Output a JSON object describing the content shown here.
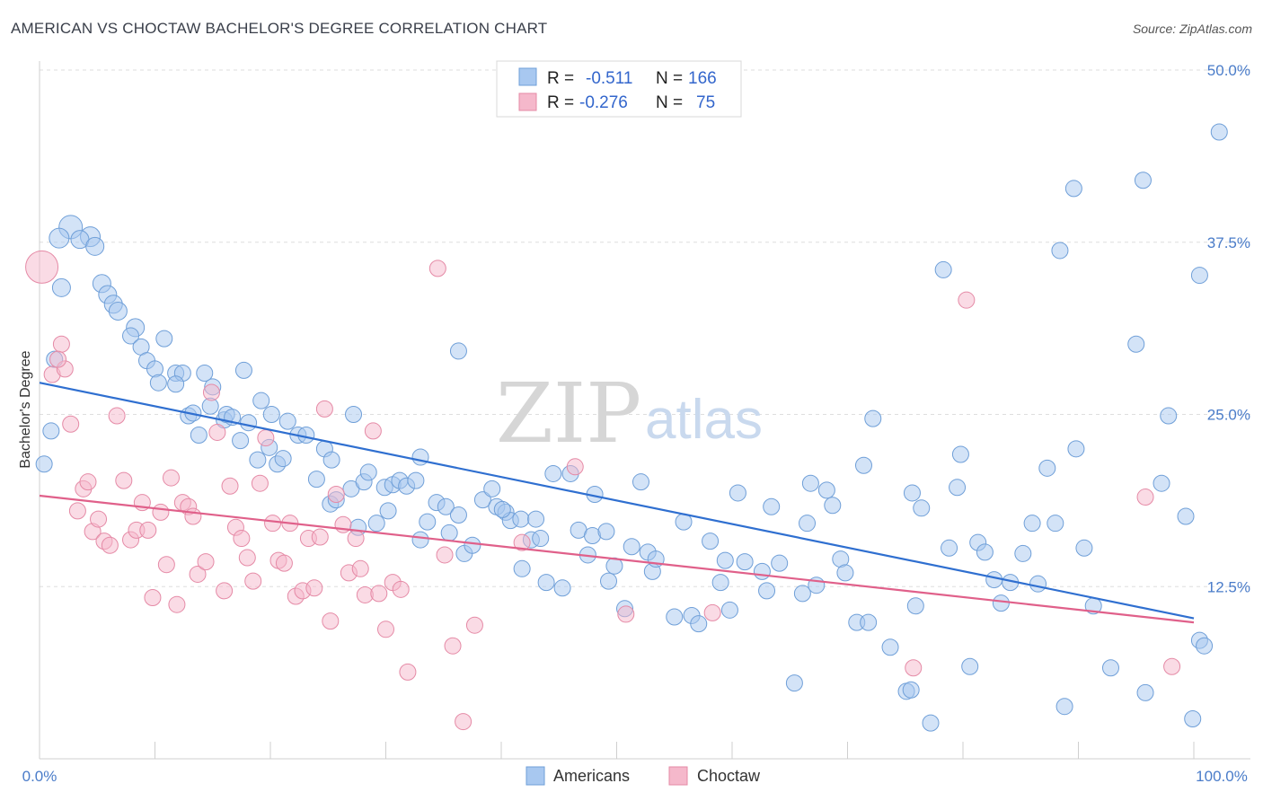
{
  "title": "AMERICAN VS CHOCTAW BACHELOR'S DEGREE CORRELATION CHART",
  "source": "Source: ZipAtlas.com",
  "watermark": {
    "zip": "ZIP",
    "atlas": "atlas"
  },
  "legend_top": [
    {
      "r_label": "R =",
      "r_value": "-0.511",
      "n_label": "N =",
      "n_value": "166",
      "color": "#a8c8f0",
      "stroke": "#6f9fd8"
    },
    {
      "r_label": "R =",
      "r_value": "-0.276",
      "n_label": "N =",
      "n_value": "75",
      "color": "#f5b8cb",
      "stroke": "#e58aa6"
    }
  ],
  "legend_bottom": [
    {
      "label": "Americans",
      "color": "#a8c8f0",
      "stroke": "#6f9fd8"
    },
    {
      "label": "Choctaw",
      "color": "#f5b8cb",
      "stroke": "#e58aa6"
    }
  ],
  "chart_data": {
    "type": "scatter",
    "title": "AMERICAN VS CHOCTAW BACHELOR'S DEGREE CORRELATION CHART",
    "xlabel": "",
    "ylabel": "Bachelor's Degree",
    "xlim": [
      0,
      100
    ],
    "ylim": [
      0,
      50
    ],
    "x_tick_labels": [
      "0.0%",
      "100.0%"
    ],
    "y_ticks": [
      12.5,
      25.0,
      37.5,
      50.0
    ],
    "y_tick_labels": [
      "12.5%",
      "25.0%",
      "37.5%",
      "50.0%"
    ],
    "grid": "horizontal dashed",
    "legend_position": "top-center",
    "series": [
      {
        "name": "Americans",
        "color": "#a8c8f0",
        "stroke": "#6f9fd8",
        "line_color": "#2f6fd0",
        "trend": {
          "x": [
            0,
            100
          ],
          "y": [
            27.3,
            10.2
          ]
        },
        "points": [
          [
            2.7,
            38.6,
            13
          ],
          [
            4.4,
            37.9,
            11
          ],
          [
            1.7,
            37.8,
            11
          ],
          [
            3.5,
            37.7,
            10
          ],
          [
            4.8,
            37.2,
            10
          ],
          [
            1.9,
            34.2,
            10
          ],
          [
            5.4,
            34.5,
            10
          ],
          [
            5.9,
            33.7,
            10
          ],
          [
            6.4,
            33.0,
            10
          ],
          [
            6.8,
            32.5,
            10
          ],
          [
            8.3,
            31.3,
            10
          ],
          [
            7.9,
            30.7,
            9
          ],
          [
            10.8,
            30.5,
            9
          ],
          [
            8.8,
            29.9,
            9
          ],
          [
            9.3,
            28.9,
            9
          ],
          [
            10.0,
            28.3,
            9
          ],
          [
            11.8,
            28.0,
            9
          ],
          [
            12.4,
            28.0,
            9
          ],
          [
            14.3,
            28.0,
            9
          ],
          [
            17.7,
            28.2,
            9
          ],
          [
            10.3,
            27.3,
            9
          ],
          [
            11.8,
            27.2,
            9
          ],
          [
            15.0,
            27.0,
            9
          ],
          [
            1.3,
            29.0,
            9
          ],
          [
            0.4,
            21.4,
            9
          ],
          [
            1.0,
            23.8,
            9
          ],
          [
            12.9,
            24.9,
            9
          ],
          [
            13.3,
            25.1,
            9
          ],
          [
            14.8,
            25.6,
            9
          ],
          [
            16.0,
            24.6,
            9
          ],
          [
            16.2,
            25.0,
            9
          ],
          [
            16.7,
            24.8,
            9
          ],
          [
            18.1,
            24.4,
            9
          ],
          [
            19.2,
            26.0,
            9
          ],
          [
            13.8,
            23.5,
            9
          ],
          [
            17.4,
            23.1,
            9
          ],
          [
            20.1,
            25.0,
            9
          ],
          [
            21.5,
            24.5,
            9
          ],
          [
            18.9,
            21.7,
            9
          ],
          [
            19.9,
            22.6,
            9
          ],
          [
            20.6,
            21.4,
            9
          ],
          [
            21.1,
            21.8,
            9
          ],
          [
            22.4,
            23.5,
            9
          ],
          [
            23.1,
            23.5,
            9
          ],
          [
            24.7,
            22.5,
            9
          ],
          [
            25.3,
            21.7,
            9
          ],
          [
            27.2,
            25.0,
            9
          ],
          [
            36.3,
            29.6,
            9
          ],
          [
            33.0,
            21.9,
            9
          ],
          [
            24.0,
            20.3,
            9
          ],
          [
            25.2,
            18.5,
            9
          ],
          [
            25.7,
            18.8,
            9
          ],
          [
            27.0,
            19.6,
            9
          ],
          [
            27.6,
            16.8,
            9
          ],
          [
            28.1,
            20.1,
            9
          ],
          [
            28.5,
            20.8,
            9
          ],
          [
            29.2,
            17.1,
            9
          ],
          [
            29.9,
            19.7,
            9
          ],
          [
            30.6,
            19.9,
            9
          ],
          [
            30.2,
            18.0,
            9
          ],
          [
            31.2,
            20.2,
            9
          ],
          [
            31.8,
            19.8,
            9
          ],
          [
            32.6,
            20.2,
            9
          ],
          [
            33.0,
            15.9,
            9
          ],
          [
            33.6,
            17.2,
            9
          ],
          [
            34.4,
            18.6,
            9
          ],
          [
            35.2,
            18.3,
            9
          ],
          [
            35.5,
            16.4,
            9
          ],
          [
            36.3,
            17.7,
            9
          ],
          [
            36.8,
            14.9,
            9
          ],
          [
            37.5,
            15.5,
            9
          ],
          [
            38.4,
            18.8,
            9
          ],
          [
            39.2,
            19.6,
            9
          ],
          [
            39.6,
            18.3,
            9
          ],
          [
            40.4,
            17.9,
            9
          ],
          [
            40.8,
            17.3,
            9
          ],
          [
            40.1,
            18.1,
            9
          ],
          [
            41.7,
            17.4,
            9
          ],
          [
            41.8,
            13.8,
            9
          ],
          [
            42.6,
            15.9,
            9
          ],
          [
            43.9,
            12.8,
            9
          ],
          [
            44.5,
            20.7,
            9
          ],
          [
            45.3,
            12.4,
            9
          ],
          [
            46.0,
            20.7,
            9
          ],
          [
            43.0,
            17.4,
            9
          ],
          [
            43.4,
            16.0,
            9
          ],
          [
            46.7,
            16.6,
            9
          ],
          [
            47.5,
            14.8,
            9
          ],
          [
            47.9,
            16.2,
            9
          ],
          [
            48.1,
            19.2,
            9
          ],
          [
            49.1,
            16.5,
            9
          ],
          [
            49.3,
            12.9,
            9
          ],
          [
            49.8,
            14.0,
            9
          ],
          [
            50.7,
            10.9,
            9
          ],
          [
            51.3,
            15.4,
            9
          ],
          [
            52.1,
            20.1,
            9
          ],
          [
            52.7,
            15.0,
            9
          ],
          [
            53.1,
            13.6,
            9
          ],
          [
            53.4,
            14.5,
            9
          ],
          [
            55.0,
            10.3,
            9
          ],
          [
            55.8,
            17.2,
            9
          ],
          [
            56.5,
            10.4,
            9
          ],
          [
            57.1,
            9.8,
            9
          ],
          [
            58.1,
            15.8,
            9
          ],
          [
            59.0,
            12.8,
            9
          ],
          [
            59.4,
            14.4,
            9
          ],
          [
            59.8,
            10.8,
            9
          ],
          [
            60.5,
            19.3,
            9
          ],
          [
            61.1,
            14.3,
            9
          ],
          [
            62.6,
            13.6,
            9
          ],
          [
            63.0,
            12.2,
            9
          ],
          [
            63.4,
            18.3,
            9
          ],
          [
            64.1,
            14.2,
            9
          ],
          [
            65.4,
            5.5,
            9
          ],
          [
            66.1,
            12.0,
            9
          ],
          [
            66.5,
            17.1,
            9
          ],
          [
            66.8,
            20.0,
            9
          ],
          [
            67.3,
            12.6,
            9
          ],
          [
            68.2,
            19.5,
            9
          ],
          [
            68.7,
            18.4,
            9
          ],
          [
            69.4,
            14.5,
            9
          ],
          [
            69.8,
            13.5,
            9
          ],
          [
            70.8,
            9.9,
            9
          ],
          [
            71.4,
            21.3,
            9
          ],
          [
            71.8,
            9.9,
            9
          ],
          [
            72.2,
            24.7,
            9
          ],
          [
            73.7,
            8.1,
            9
          ],
          [
            75.1,
            4.9,
            9
          ],
          [
            75.5,
            5.0,
            9
          ],
          [
            75.9,
            11.1,
            9
          ],
          [
            76.4,
            18.2,
            9
          ],
          [
            75.6,
            19.3,
            9
          ],
          [
            77.2,
            2.6,
            9
          ],
          [
            78.8,
            15.3,
            9
          ],
          [
            79.5,
            19.7,
            9
          ],
          [
            79.8,
            22.1,
            9
          ],
          [
            80.6,
            6.7,
            9
          ],
          [
            81.3,
            15.7,
            9
          ],
          [
            81.9,
            15.0,
            9
          ],
          [
            82.7,
            13.0,
            9
          ],
          [
            83.3,
            11.3,
            9
          ],
          [
            84.1,
            12.8,
            9
          ],
          [
            85.2,
            14.9,
            9
          ],
          [
            86.0,
            17.1,
            9
          ],
          [
            86.5,
            12.7,
            9
          ],
          [
            87.3,
            21.1,
            9
          ],
          [
            88.0,
            17.1,
            9
          ],
          [
            88.8,
            3.8,
            9
          ],
          [
            89.8,
            22.5,
            9
          ],
          [
            90.5,
            15.3,
            9
          ],
          [
            91.3,
            11.1,
            9
          ],
          [
            92.8,
            6.6,
            9
          ],
          [
            95.8,
            4.8,
            9
          ],
          [
            97.2,
            20.0,
            9
          ],
          [
            97.8,
            24.9,
            9
          ],
          [
            99.3,
            17.6,
            9
          ],
          [
            100.5,
            8.6,
            9
          ],
          [
            100.9,
            8.2,
            9
          ],
          [
            95.6,
            42.0,
            9
          ],
          [
            88.4,
            36.9,
            9
          ],
          [
            78.3,
            35.5,
            9
          ],
          [
            89.6,
            41.4,
            9
          ],
          [
            95.0,
            30.1,
            9
          ],
          [
            100.5,
            35.1,
            9
          ],
          [
            102.2,
            45.5,
            9
          ],
          [
            99.9,
            2.9,
            9
          ]
        ]
      },
      {
        "name": "Choctaw",
        "color": "#f5b8cb",
        "stroke": "#e58aa6",
        "line_color": "#e0608a",
        "trend": {
          "x": [
            0,
            100
          ],
          "y": [
            19.1,
            9.9
          ]
        },
        "points": [
          [
            0.2,
            35.7,
            18
          ],
          [
            1.9,
            30.1,
            9
          ],
          [
            1.1,
            27.9,
            9
          ],
          [
            2.2,
            28.3,
            9
          ],
          [
            1.6,
            29.0,
            9
          ],
          [
            2.7,
            24.3,
            9
          ],
          [
            3.3,
            18.0,
            9
          ],
          [
            3.8,
            19.6,
            9
          ],
          [
            4.2,
            20.1,
            9
          ],
          [
            4.6,
            16.5,
            9
          ],
          [
            5.1,
            17.4,
            9
          ],
          [
            5.6,
            15.8,
            9
          ],
          [
            6.1,
            15.5,
            9
          ],
          [
            6.7,
            24.9,
            9
          ],
          [
            7.3,
            20.2,
            9
          ],
          [
            7.9,
            15.9,
            9
          ],
          [
            8.4,
            16.6,
            9
          ],
          [
            8.9,
            18.6,
            9
          ],
          [
            9.4,
            16.6,
            9
          ],
          [
            9.8,
            11.7,
            9
          ],
          [
            10.5,
            17.9,
            9
          ],
          [
            11.0,
            14.1,
            9
          ],
          [
            11.4,
            20.4,
            9
          ],
          [
            11.9,
            11.2,
            9
          ],
          [
            12.4,
            18.6,
            9
          ],
          [
            12.9,
            18.3,
            9
          ],
          [
            13.3,
            17.6,
            9
          ],
          [
            13.7,
            13.4,
            9
          ],
          [
            14.4,
            14.3,
            9
          ],
          [
            14.9,
            26.6,
            9
          ],
          [
            15.4,
            23.7,
            9
          ],
          [
            16.0,
            12.2,
            9
          ],
          [
            16.5,
            19.8,
            9
          ],
          [
            17.0,
            16.8,
            9
          ],
          [
            17.5,
            16.0,
            9
          ],
          [
            18.0,
            14.6,
            9
          ],
          [
            18.5,
            12.9,
            9
          ],
          [
            19.1,
            20.0,
            9
          ],
          [
            19.6,
            23.3,
            9
          ],
          [
            20.2,
            17.1,
            9
          ],
          [
            20.7,
            14.4,
            9
          ],
          [
            21.2,
            14.2,
            9
          ],
          [
            21.7,
            17.1,
            9
          ],
          [
            22.2,
            11.8,
            9
          ],
          [
            22.8,
            12.2,
            9
          ],
          [
            23.3,
            16.0,
            9
          ],
          [
            23.8,
            12.4,
            9
          ],
          [
            24.3,
            16.1,
            9
          ],
          [
            24.7,
            25.4,
            9
          ],
          [
            25.2,
            10.0,
            9
          ],
          [
            25.7,
            19.2,
            9
          ],
          [
            26.3,
            17.0,
            9
          ],
          [
            26.8,
            13.5,
            9
          ],
          [
            27.4,
            16.0,
            9
          ],
          [
            27.8,
            13.8,
            9
          ],
          [
            28.2,
            11.9,
            9
          ],
          [
            28.9,
            23.8,
            9
          ],
          [
            29.4,
            12.0,
            9
          ],
          [
            30.0,
            9.4,
            9
          ],
          [
            30.6,
            12.8,
            9
          ],
          [
            31.3,
            12.3,
            9
          ],
          [
            31.9,
            6.3,
            9
          ],
          [
            34.5,
            35.6,
            9
          ],
          [
            35.1,
            14.8,
            9
          ],
          [
            35.8,
            8.2,
            9
          ],
          [
            36.7,
            2.7,
            9
          ],
          [
            37.7,
            9.7,
            9
          ],
          [
            41.8,
            15.7,
            9
          ],
          [
            46.4,
            21.2,
            9
          ],
          [
            50.8,
            10.5,
            9
          ],
          [
            58.3,
            10.6,
            9
          ],
          [
            75.7,
            6.6,
            9
          ],
          [
            80.3,
            33.3,
            9
          ],
          [
            95.8,
            19.0,
            9
          ],
          [
            98.1,
            6.7,
            9
          ]
        ]
      }
    ]
  }
}
